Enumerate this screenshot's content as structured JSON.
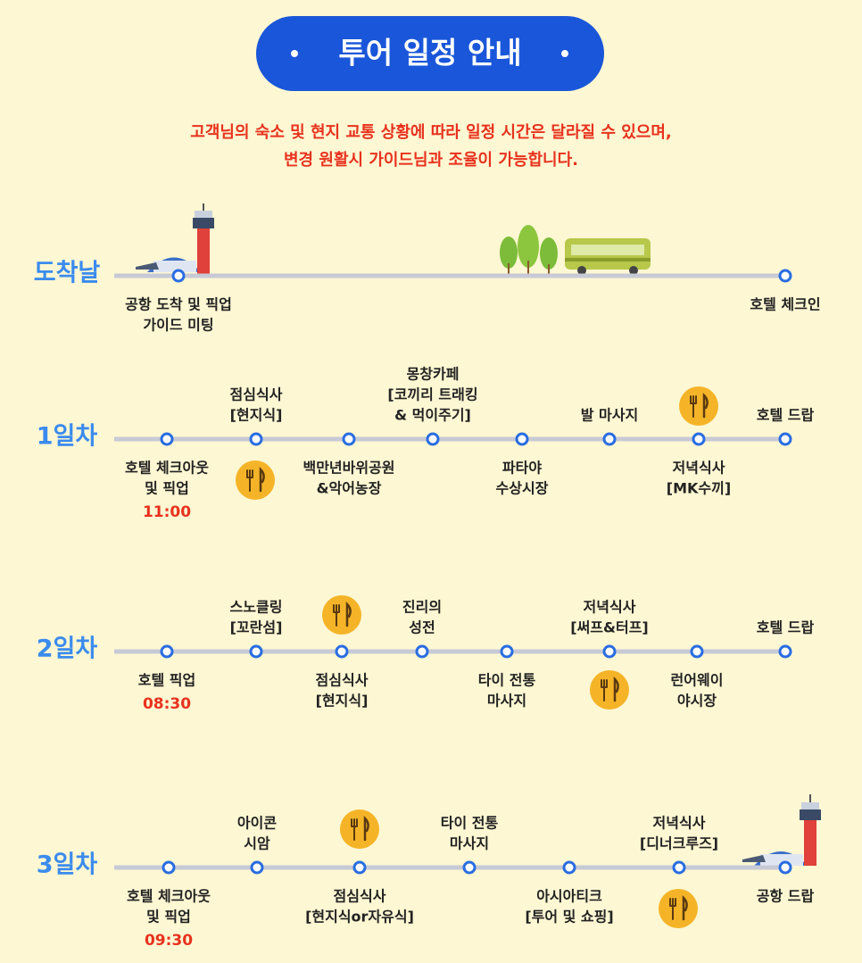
{
  "header": {
    "title": "투어 일정 안내",
    "notice": [
      "고객님의 숙소 및 현지 교통 상황에 따라 일정 시간은 달라질 수 있으며,",
      "변경 원활시 가이드님과 조율이 가능합니다."
    ]
  },
  "days": [
    {
      "label": "도착날",
      "stops": [
        {
          "lines": [
            "공항 도착 및 픽업",
            "가이드 미팅"
          ]
        },
        {
          "lines": [
            "호텔 체크인"
          ]
        }
      ]
    },
    {
      "label": "1일차",
      "stops": [
        {
          "lines": [
            "호텔 체크아웃",
            "및 픽업"
          ],
          "time": "11:00"
        },
        {
          "lines": [
            "점심식사",
            "[현지식]"
          ]
        },
        {
          "lines": [
            "백만년바위공원",
            "&악어농장"
          ]
        },
        {
          "lines": [
            "몽창카페",
            "[코끼리 트래킹",
            "& 먹이주기]"
          ]
        },
        {
          "lines": [
            "파타야",
            "수상시장"
          ]
        },
        {
          "lines": [
            "발 마사지"
          ]
        },
        {
          "lines": [
            "저녁식사",
            "[MK수끼]"
          ]
        },
        {
          "lines": [
            "호텔 드랍"
          ]
        }
      ]
    },
    {
      "label": "2일차",
      "stops": [
        {
          "lines": [
            "호텔 픽업"
          ],
          "time": "08:30"
        },
        {
          "lines": [
            "스노클링",
            "[꼬란섬]"
          ]
        },
        {
          "lines": [
            "점심식사",
            "[현지식]"
          ]
        },
        {
          "lines": [
            "진리의",
            "성전"
          ]
        },
        {
          "lines": [
            "타이 전통",
            "마사지"
          ]
        },
        {
          "lines": [
            "저녁식사",
            "[써프&터프]"
          ]
        },
        {
          "lines": [
            "런어웨이",
            "야시장"
          ]
        },
        {
          "lines": [
            "호텔 드랍"
          ]
        }
      ]
    },
    {
      "label": "3일차",
      "stops": [
        {
          "lines": [
            "호텔 체크아웃",
            "및 픽업"
          ],
          "time": "09:30"
        },
        {
          "lines": [
            "아이콘",
            "시암"
          ]
        },
        {
          "lines": [
            "점심식사",
            "[현지식or자유식]"
          ]
        },
        {
          "lines": [
            "타이 전통",
            "마사지"
          ]
        },
        {
          "lines": [
            "아시아티크",
            "[투어 및 쇼핑]"
          ]
        },
        {
          "lines": [
            "저녁식사",
            "[디너크루즈]"
          ]
        },
        {
          "lines": [
            "공항 드랍"
          ]
        }
      ]
    }
  ]
}
